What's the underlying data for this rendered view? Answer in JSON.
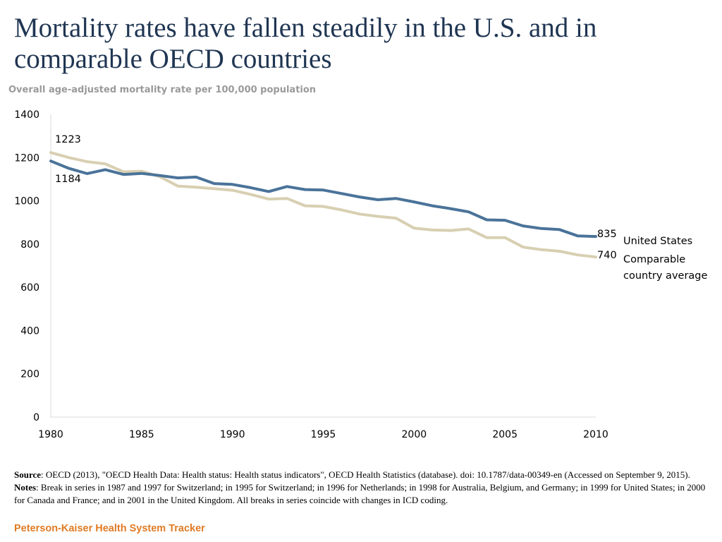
{
  "header": {
    "title": "Mortality rates have fallen steadily in the U.S. and in comparable OECD countries",
    "subtitle": "Overall age-adjusted mortality rate per 100,000 population"
  },
  "footer": {
    "source_label": "Source",
    "source_text": ": OECD (2013), \"OECD Health Data: Health status: Health status indicators\", OECD Health Statistics (database). doi: 10.1787/data-00349-en (Accessed on September 9, 2015).",
    "notes_label": "Notes",
    "notes_text": ": Break in series in 1987 and 1997 for Switzerland;  in 1995 for Switzerland; in 1996 for Netherlands; in 1998 for Australia, Belgium, and Germany; in 1999 for United States;  in 2000 for Canada and France; and in 2001 in the United Kingdom. All breaks in series coincide with  changes in ICD coding.",
    "brand": "Peterson-Kaiser Health System Tracker"
  },
  "colors": {
    "us_series": "#4a7399",
    "comparable_series": "#d8cfb2",
    "title": "#1f3552",
    "brand": "#e07b25",
    "axis": "#d9d9d9"
  },
  "chart_data": {
    "type": "line",
    "title": "Overall age-adjusted mortality rate per 100,000 population",
    "xlabel": "",
    "ylabel": "",
    "xlim": [
      1980,
      2010
    ],
    "ylim": [
      0,
      1400
    ],
    "yticks": [
      0,
      200,
      400,
      600,
      800,
      1000,
      1200,
      1400
    ],
    "xticks": [
      1980,
      1985,
      1990,
      1995,
      2000,
      2005,
      2010
    ],
    "grid": false,
    "x": [
      1980,
      1981,
      1982,
      1983,
      1984,
      1985,
      1986,
      1987,
      1988,
      1989,
      1990,
      1991,
      1992,
      1993,
      1994,
      1995,
      1996,
      1997,
      1998,
      1999,
      2000,
      2001,
      2002,
      2003,
      2004,
      2005,
      2006,
      2007,
      2008,
      2009,
      2010
    ],
    "series": [
      {
        "name": "United States",
        "color": "#4a7399",
        "values": [
          1184,
          1150,
          1126,
          1144,
          1122,
          1127,
          1117,
          1106,
          1110,
          1080,
          1076,
          1061,
          1043,
          1066,
          1052,
          1050,
          1034,
          1018,
          1005,
          1011,
          995,
          977,
          964,
          949,
          912,
          910,
          884,
          872,
          867,
          838,
          835
        ],
        "start_label": "1184",
        "end_label": "835"
      },
      {
        "name": "Comparable country average",
        "color": "#d8cfb2",
        "values": [
          1223,
          1200,
          1181,
          1171,
          1134,
          1137,
          1112,
          1068,
          1063,
          1056,
          1049,
          1030,
          1008,
          1011,
          977,
          974,
          958,
          939,
          928,
          920,
          874,
          865,
          863,
          870,
          830,
          830,
          786,
          774,
          767,
          750,
          740
        ],
        "start_label": "1223",
        "end_label": "740"
      }
    ],
    "legend": {
      "placement": "right",
      "us_label": "United States",
      "comparable_label_line1": "Comparable",
      "comparable_label_line2": "country average"
    }
  }
}
